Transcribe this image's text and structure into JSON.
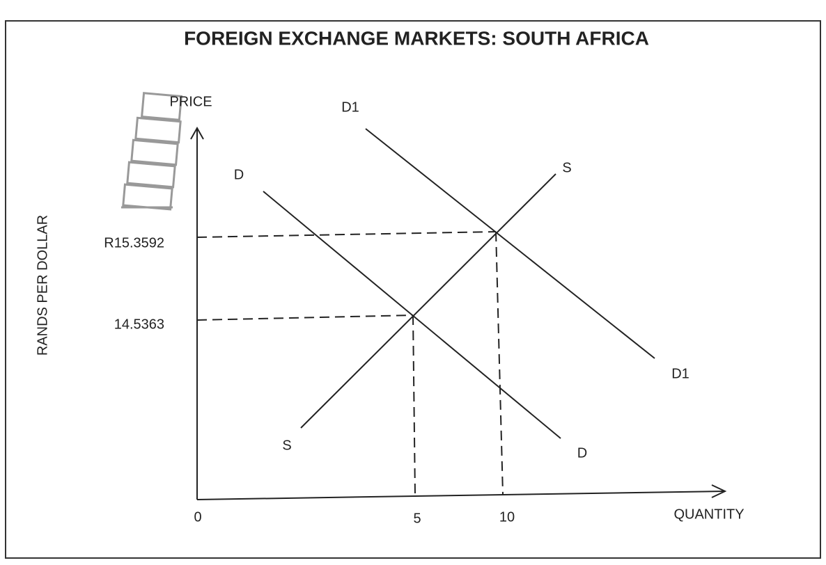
{
  "header": {
    "title": "FOREIGN EXCHANGE MARKETS: SOUTH AFRICA"
  },
  "y_axis": {
    "label": "PRICE",
    "side_label": "RANDS PER DOLLAR",
    "ticks": [
      "R15.3592",
      "14.5363"
    ]
  },
  "x_axis": {
    "label": "QUANTITY",
    "ticks": [
      "0",
      "5",
      "10"
    ]
  },
  "curves": [
    {
      "label": "D"
    },
    {
      "label": "D1"
    },
    {
      "label": "S"
    }
  ]
}
